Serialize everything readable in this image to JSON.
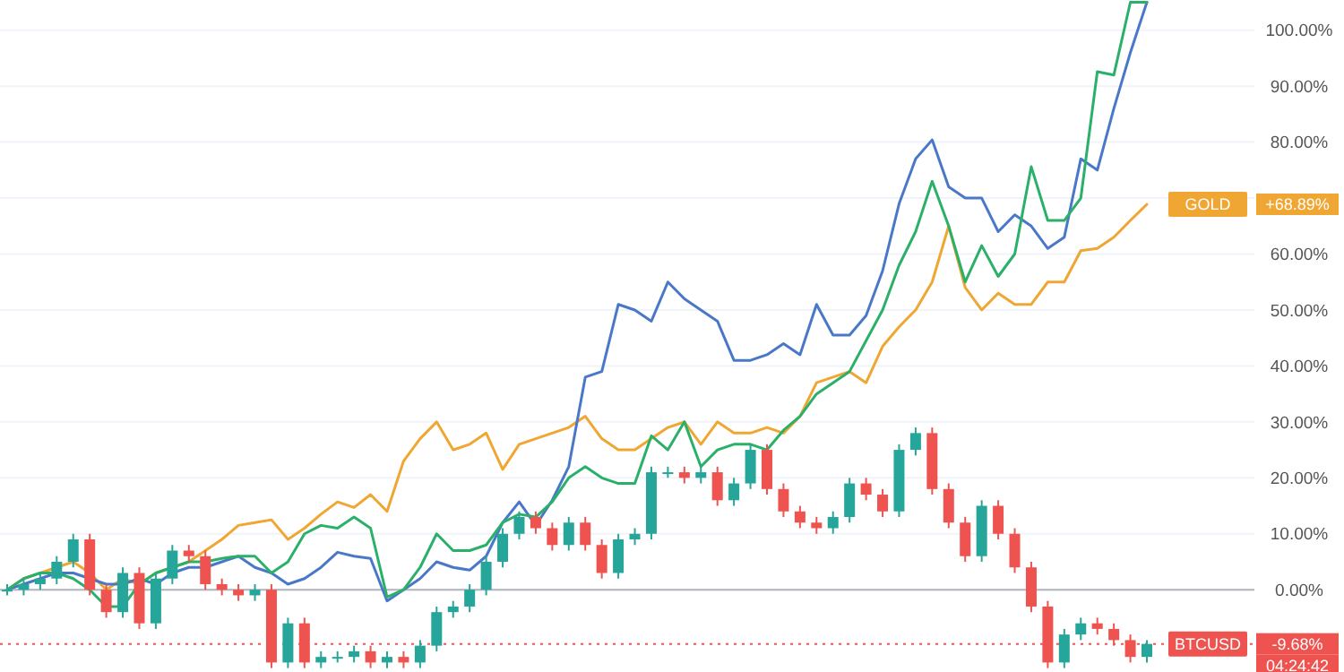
{
  "chart_data": {
    "type": "line",
    "categories": [
      null,
      null,
      null,
      null,
      null,
      null,
      null,
      null,
      null,
      null,
      null,
      null,
      null,
      null,
      null,
      null,
      null,
      null,
      null,
      null,
      null,
      null,
      null,
      null,
      null,
      null,
      null,
      null,
      null,
      null,
      null,
      null,
      null,
      null,
      null,
      null,
      null,
      null,
      null,
      null,
      null,
      null,
      null,
      null,
      null,
      null,
      null,
      null,
      null,
      null,
      null,
      null,
      null,
      null,
      null,
      null,
      null,
      null,
      null,
      null,
      null,
      null,
      null,
      null,
      null,
      null,
      null,
      null,
      null,
      null
    ],
    "ylim": [
      -14.7,
      105.4
    ],
    "yticks": [
      {
        "value": 0,
        "label": "0.00%"
      },
      {
        "value": 10,
        "label": "10.00%"
      },
      {
        "value": 20,
        "label": "20.00%"
      },
      {
        "value": 30,
        "label": "30.00%"
      },
      {
        "value": 40,
        "label": "40.00%"
      },
      {
        "value": 50,
        "label": "50.00%"
      },
      {
        "value": 60,
        "label": "60.00%"
      },
      {
        "value": 70,
        "label": null
      },
      {
        "value": 80,
        "label": "80.00%"
      },
      {
        "value": 90,
        "label": "90.00%"
      },
      {
        "value": 100,
        "label": "100.00%"
      }
    ],
    "grid": "y",
    "legend": false,
    "marker": "none",
    "line_style": "solid",
    "ref_lines": [
      {
        "axis": "y",
        "value": 0,
        "color": "#b2b5be",
        "line_style": "solid"
      },
      {
        "axis": "y",
        "value": -9.68,
        "color": "#ef5350",
        "line_style": "dotted"
      }
    ],
    "annotations": [
      "-9.68%",
      "04:24:42",
      "+68.89%"
    ],
    "series": [
      {
        "type": "candlestick",
        "name": "BTCUSD",
        "color": "#ef5350",
        "ohlc": [
          [
            0,
            1,
            -1,
            0
          ],
          [
            0,
            2,
            -1,
            1
          ],
          [
            1,
            3,
            0,
            2
          ],
          [
            2,
            6,
            1,
            5
          ],
          [
            5,
            10,
            4,
            9
          ],
          [
            9,
            10,
            -1,
            0
          ],
          [
            0,
            1,
            -5,
            -4
          ],
          [
            -4,
            4,
            -5,
            3
          ],
          [
            3,
            4,
            -7,
            -6
          ],
          [
            -6,
            3,
            -7,
            2
          ],
          [
            2,
            8,
            1,
            7
          ],
          [
            7,
            8,
            5,
            6
          ],
          [
            6,
            7,
            0,
            1
          ],
          [
            1,
            2,
            -1,
            0
          ],
          [
            0,
            1,
            -2,
            -1
          ],
          [
            -1,
            1,
            -2,
            0
          ],
          [
            0,
            1,
            -14,
            -13
          ],
          [
            -13,
            -5,
            -14,
            -6
          ],
          [
            -6,
            -5,
            -14,
            -13
          ],
          [
            -13,
            -11,
            -14,
            -12
          ],
          [
            -12,
            -11,
            -13,
            -12
          ],
          [
            -12,
            -10,
            -13,
            -11
          ],
          [
            -11,
            -10,
            -14,
            -13
          ],
          [
            -13,
            -11,
            -14,
            -12
          ],
          [
            -12,
            -11,
            -14,
            -13
          ],
          [
            -13,
            -9,
            -14,
            -10
          ],
          [
            -10,
            -3,
            -11,
            -4
          ],
          [
            -4,
            -2,
            -5,
            -3
          ],
          [
            -3,
            1,
            -4,
            0
          ],
          [
            0,
            6,
            -1,
            5
          ],
          [
            5,
            11,
            4,
            10
          ],
          [
            10,
            14,
            9,
            13
          ],
          [
            13,
            14,
            10,
            11
          ],
          [
            11,
            12,
            7,
            8
          ],
          [
            8,
            13,
            7,
            12
          ],
          [
            12,
            13,
            7,
            8
          ],
          [
            8,
            9,
            2,
            3
          ],
          [
            3,
            10,
            2,
            9
          ],
          [
            9,
            11,
            8,
            10
          ],
          [
            10,
            22,
            9,
            21
          ],
          [
            21,
            22,
            20,
            21
          ],
          [
            21,
            22,
            19,
            20
          ],
          [
            20,
            22,
            19,
            21
          ],
          [
            21,
            22,
            15,
            16
          ],
          [
            16,
            20,
            15,
            19
          ],
          [
            19,
            26,
            18,
            25
          ],
          [
            25,
            26,
            17,
            18
          ],
          [
            18,
            19,
            13,
            14
          ],
          [
            14,
            15,
            11,
            12
          ],
          [
            12,
            13,
            10,
            11
          ],
          [
            11,
            14,
            10,
            13
          ],
          [
            13,
            20,
            12,
            19
          ],
          [
            19,
            20,
            16,
            17
          ],
          [
            17,
            18,
            13,
            14
          ],
          [
            14,
            26,
            13,
            25
          ],
          [
            25,
            29,
            24,
            28
          ],
          [
            28,
            29,
            17,
            18
          ],
          [
            18,
            19,
            11,
            12
          ],
          [
            12,
            13,
            5,
            6
          ],
          [
            6,
            16,
            5,
            15
          ],
          [
            15,
            16,
            9,
            10
          ],
          [
            10,
            11,
            3,
            4
          ],
          [
            4,
            5,
            -4,
            -3
          ],
          [
            -3,
            -2,
            -14,
            -13
          ],
          [
            -13,
            -7,
            -14,
            -8
          ],
          [
            -8,
            -5,
            -9,
            -6
          ],
          [
            -6,
            -5,
            -8,
            -7
          ],
          [
            -7,
            -6,
            -10,
            -9
          ],
          [
            -9,
            -8,
            -13,
            -12
          ],
          [
            -12,
            -9,
            -13,
            -9.68
          ]
        ],
        "colors": [
          "#26a69a",
          "#26a69a",
          "#26a69a",
          "#26a69a",
          "#26a69a",
          "#ef5350",
          "#ef5350",
          "#26a69a",
          "#ef5350",
          "#26a69a",
          "#26a69a",
          "#ef5350",
          "#ef5350",
          "#ef5350",
          "#ef5350",
          "#26a69a",
          "#ef5350",
          "#26a69a",
          "#ef5350",
          "#26a69a",
          "#26a69a",
          "#26a69a",
          "#ef5350",
          "#26a69a",
          "#ef5350",
          "#26a69a",
          "#26a69a",
          "#26a69a",
          "#26a69a",
          "#26a69a",
          "#26a69a",
          "#26a69a",
          "#ef5350",
          "#ef5350",
          "#26a69a",
          "#ef5350",
          "#ef5350",
          "#26a69a",
          "#26a69a",
          "#26a69a",
          "#26a69a",
          "#ef5350",
          "#26a69a",
          "#ef5350",
          "#26a69a",
          "#26a69a",
          "#ef5350",
          "#ef5350",
          "#ef5350",
          "#ef5350",
          "#26a69a",
          "#26a69a",
          "#ef5350",
          "#ef5350",
          "#26a69a",
          "#26a69a",
          "#ef5350",
          "#ef5350",
          "#ef5350",
          "#26a69a",
          "#ef5350",
          "#ef5350",
          "#ef5350",
          "#ef5350",
          "#26a69a",
          "#26a69a",
          "#ef5350",
          "#ef5350",
          "#ef5350",
          "#26a69a"
        ]
      },
      {
        "name": "GOLD",
        "color": "#f0a632",
        "values": [
          0,
          2,
          3,
          4,
          5,
          3,
          0,
          2,
          1,
          3,
          4,
          5,
          7,
          9,
          11.5,
          12,
          12.5,
          9,
          11,
          13.5,
          15.7,
          14.7,
          17,
          14,
          23,
          27,
          30,
          25,
          26,
          28,
          21.5,
          26,
          27,
          28,
          29,
          31,
          27,
          25,
          25,
          27,
          29,
          30,
          26,
          30,
          28,
          28,
          29,
          28,
          31,
          37,
          38,
          39,
          37,
          43.5,
          47,
          50,
          55,
          65,
          54,
          50,
          53,
          51,
          51,
          55,
          55,
          60.6,
          61,
          63,
          66,
          68.89
        ]
      },
      {
        "color": "#4a78c8",
        "values": [
          0,
          1,
          2,
          3,
          3,
          2,
          1,
          1,
          2,
          1,
          3,
          4,
          4,
          5,
          6,
          4,
          3,
          1,
          2,
          4,
          6.7,
          6,
          5.6,
          -2,
          0,
          2,
          5,
          4,
          3.5,
          6,
          12,
          15.7,
          11.5,
          16,
          22,
          38,
          39,
          51,
          50,
          48,
          55,
          52,
          50,
          48,
          41,
          41,
          42,
          44,
          42,
          51,
          45.5,
          45.5,
          49,
          57,
          69,
          77,
          80.4,
          72,
          70,
          70,
          64,
          67,
          65,
          61,
          63,
          77,
          75,
          86,
          96,
          105
        ]
      },
      {
        "color": "#2bb06a",
        "values": [
          0,
          2,
          3,
          3,
          2,
          0,
          -3,
          -3,
          1,
          3,
          4,
          5,
          5,
          5.6,
          6,
          6,
          3,
          5,
          10,
          11.5,
          11,
          13,
          11,
          -1.3,
          0,
          4,
          10,
          7,
          7,
          8,
          12,
          13.5,
          13,
          15.7,
          20,
          22,
          20,
          19,
          19,
          27.5,
          25,
          30,
          22,
          25,
          26,
          26,
          25,
          28.5,
          31,
          35,
          37,
          39,
          44.5,
          50,
          58,
          64,
          73,
          65,
          55,
          61.5,
          56,
          60,
          75.6,
          66,
          66,
          70,
          92.6,
          92,
          105,
          105
        ]
      }
    ]
  }
}
